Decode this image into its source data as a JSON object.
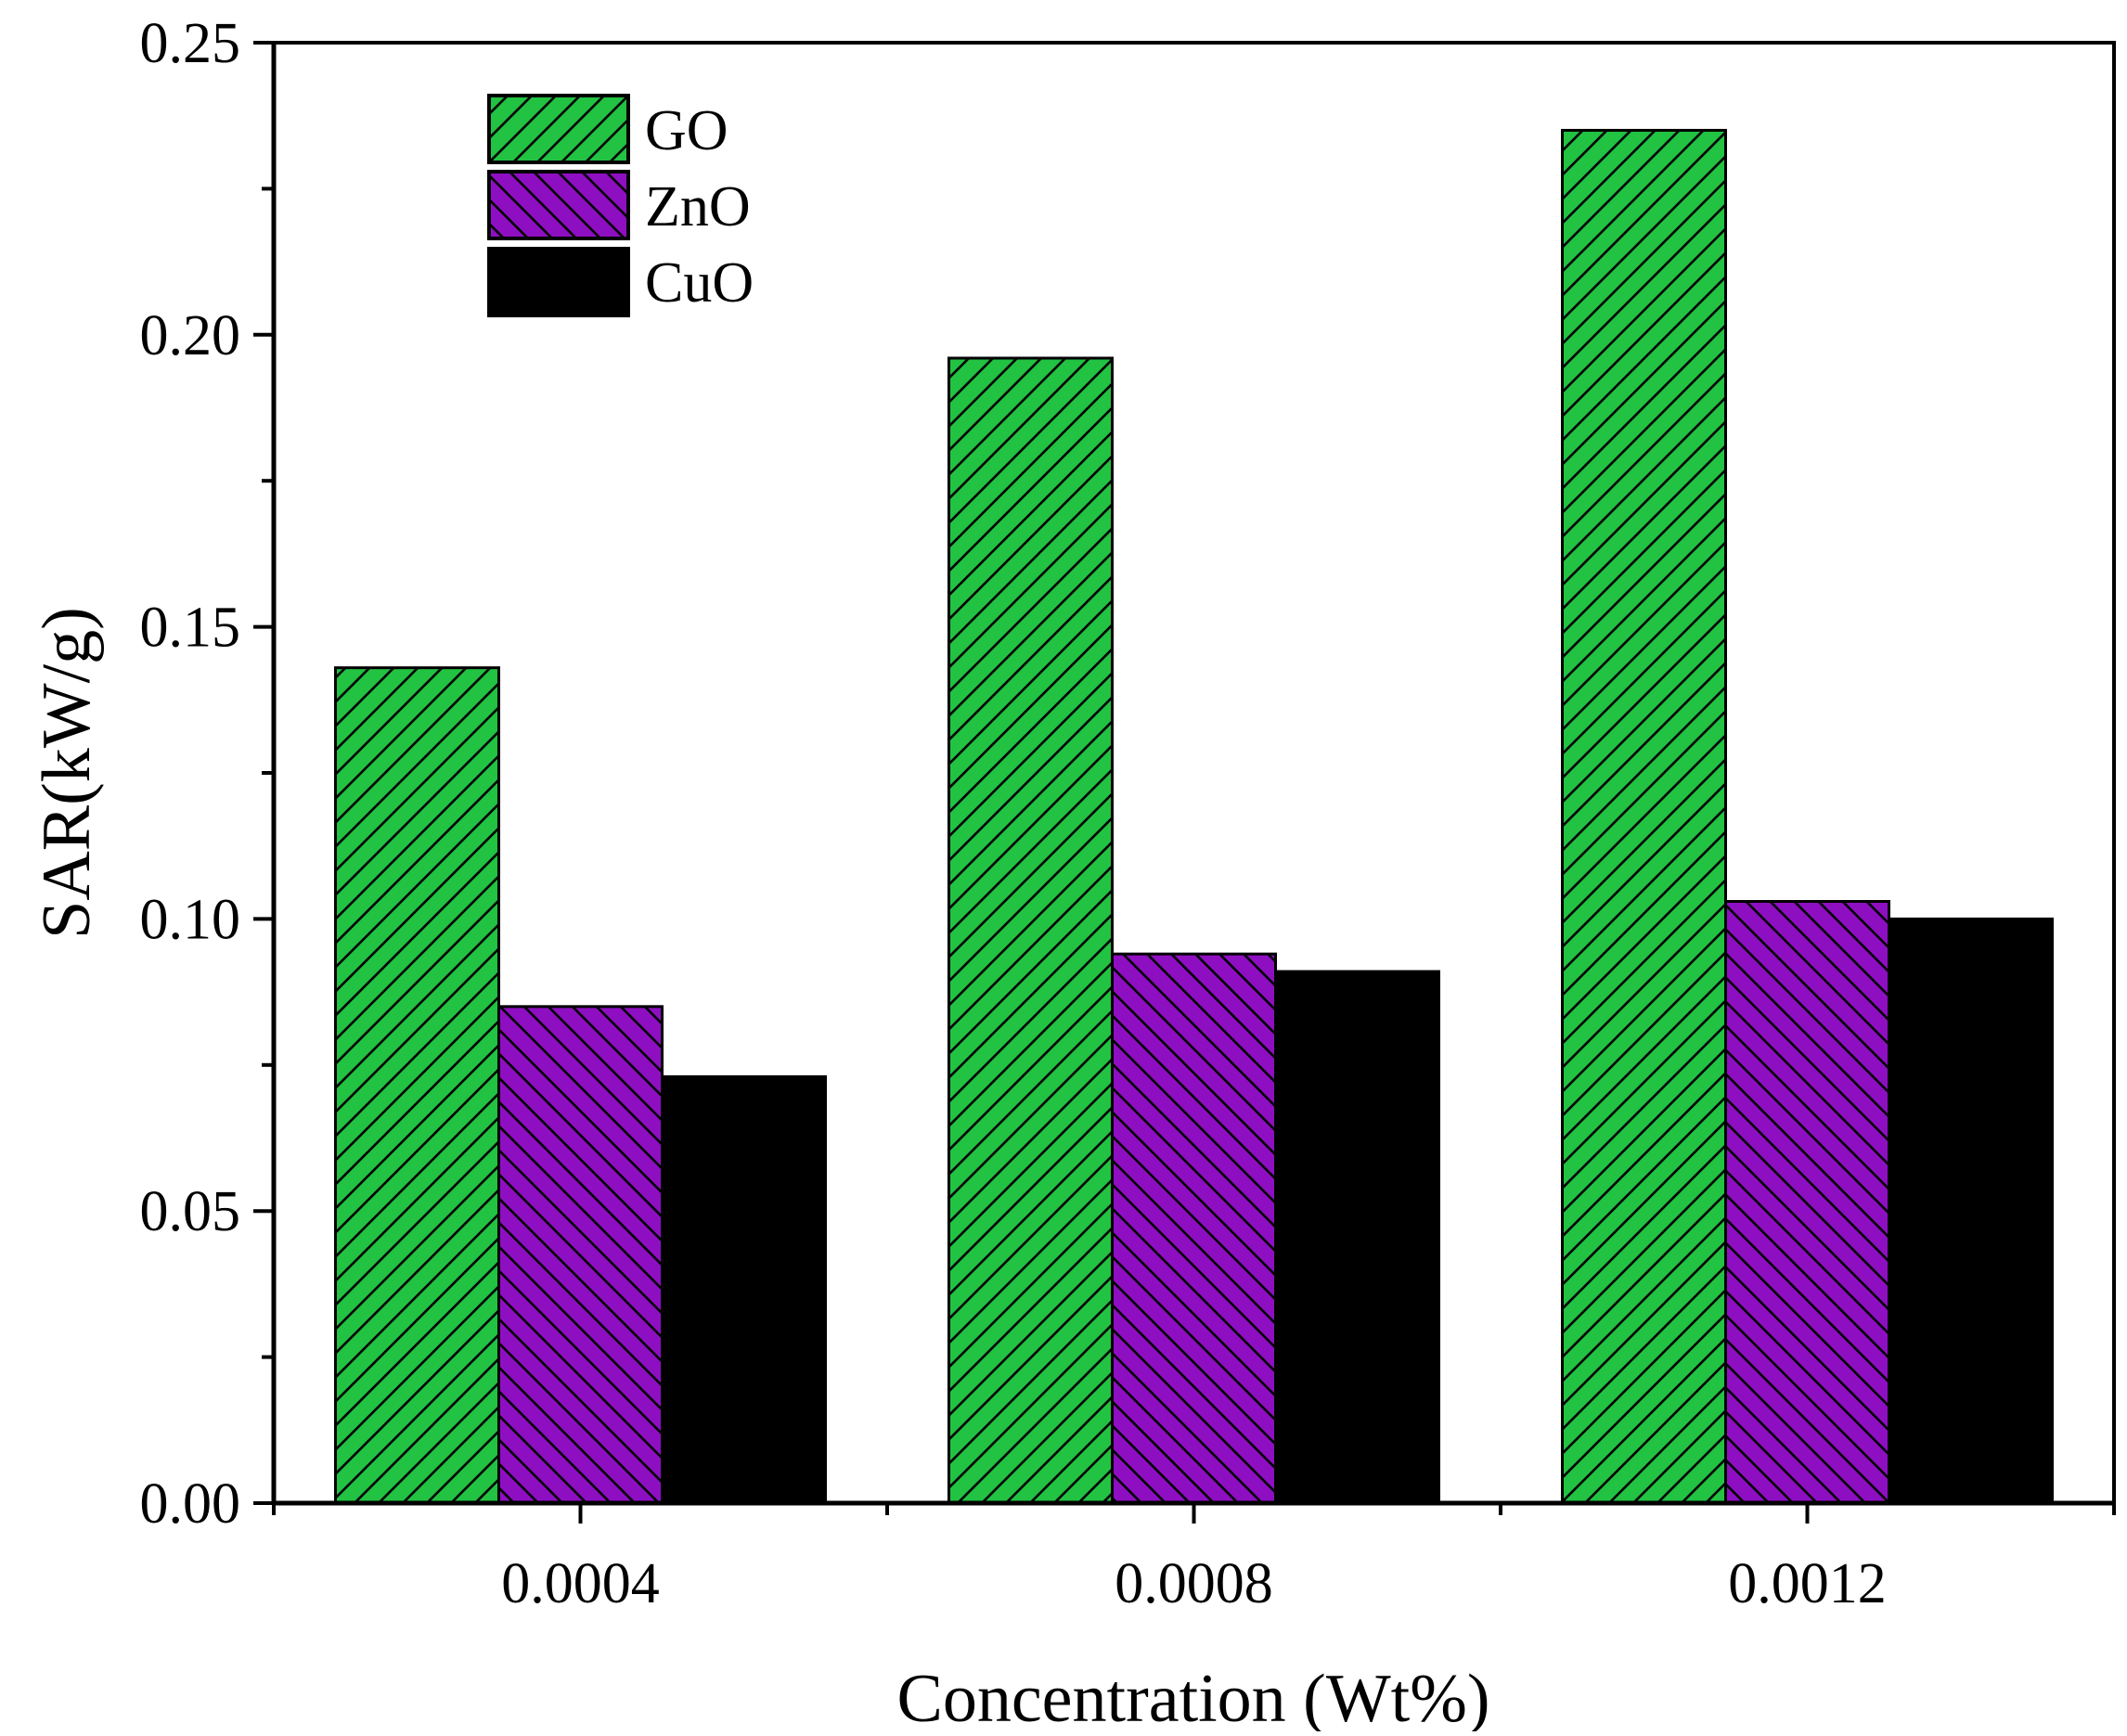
{
  "chart_data": {
    "type": "bar",
    "title": "",
    "xlabel": "Concentration (Wt%)",
    "ylabel": "SAR(kW/g)",
    "ylim": [
      0,
      0.25
    ],
    "yticks": [
      "0.00",
      "0.05",
      "0.10",
      "0.15",
      "0.20",
      "0.25"
    ],
    "ytick_values": [
      0,
      0.05,
      0.1,
      0.15,
      0.2,
      0.25
    ],
    "categories": [
      "0.0004",
      "0.0008",
      "0.0012"
    ],
    "series": [
      {
        "name": "GO",
        "values": [
          0.143,
          0.196,
          0.235
        ],
        "color": "#22c242",
        "pattern": "hatch-forward"
      },
      {
        "name": "ZnO",
        "values": [
          0.085,
          0.094,
          0.103
        ],
        "color": "#8e0fc2",
        "pattern": "hatch-backward"
      },
      {
        "name": "CuO",
        "values": [
          0.073,
          0.091,
          0.1
        ],
        "color": "#000000",
        "pattern": "solid"
      }
    ],
    "legend_position": "top-left",
    "grid": false
  }
}
